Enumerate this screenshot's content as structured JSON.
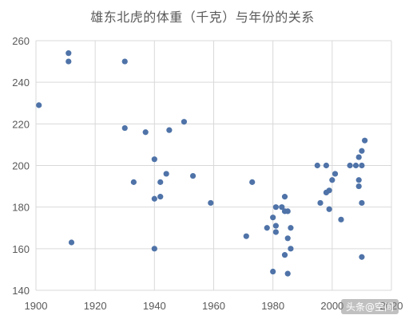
{
  "chart_data": {
    "type": "scatter",
    "title": "雄东北虎的体重（千克）与年份的关系",
    "xlabel": "",
    "ylabel": "",
    "xlim": [
      1900,
      2020
    ],
    "ylim": [
      140,
      260
    ],
    "x_ticks": [
      1900,
      1920,
      1940,
      1960,
      1980,
      2000,
      2020
    ],
    "y_ticks": [
      140,
      160,
      180,
      200,
      220,
      240,
      260
    ],
    "grid": "vertical-and-horizontal",
    "legend": "none",
    "marker_color": "#4f73a8",
    "series": [
      {
        "points": [
          [
            1901,
            229
          ],
          [
            1911,
            254
          ],
          [
            1911,
            250
          ],
          [
            1912,
            163
          ],
          [
            1930,
            250
          ],
          [
            1930,
            218
          ],
          [
            1933,
            192
          ],
          [
            1937,
            216
          ],
          [
            1940,
            203
          ],
          [
            1940,
            184
          ],
          [
            1940,
            160
          ],
          [
            1942,
            192
          ],
          [
            1942,
            185
          ],
          [
            1944,
            196
          ],
          [
            1945,
            217
          ],
          [
            1950,
            221
          ],
          [
            1953,
            195
          ],
          [
            1959,
            182
          ],
          [
            1971,
            166
          ],
          [
            1973,
            192
          ],
          [
            1978,
            170
          ],
          [
            1980,
            175
          ],
          [
            1980,
            149
          ],
          [
            1981,
            180
          ],
          [
            1981,
            171
          ],
          [
            1981,
            168
          ],
          [
            1983,
            180
          ],
          [
            1984,
            185
          ],
          [
            1984,
            178
          ],
          [
            1984,
            157
          ],
          [
            1985,
            178
          ],
          [
            1985,
            165
          ],
          [
            1985,
            148
          ],
          [
            1986,
            170
          ],
          [
            1986,
            160
          ],
          [
            1995,
            200
          ],
          [
            1996,
            182
          ],
          [
            1998,
            200
          ],
          [
            1998,
            187
          ],
          [
            1999,
            188
          ],
          [
            1999,
            179
          ],
          [
            2000,
            193
          ],
          [
            2001,
            196
          ],
          [
            2003,
            174
          ],
          [
            2006,
            200
          ],
          [
            2008,
            200
          ],
          [
            2009,
            204
          ],
          [
            2009,
            193
          ],
          [
            2009,
            190
          ],
          [
            2010,
            207
          ],
          [
            2010,
            200
          ],
          [
            2010,
            182
          ],
          [
            2010,
            156
          ],
          [
            2011,
            212
          ]
        ]
      }
    ]
  },
  "watermark": "头条@空间"
}
